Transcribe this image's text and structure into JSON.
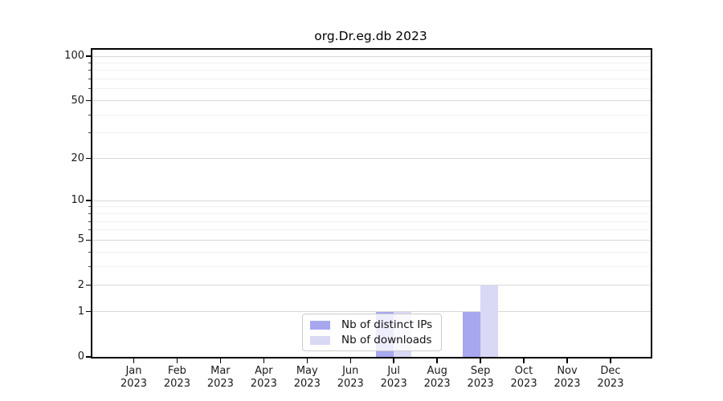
{
  "chart_data": {
    "type": "bar",
    "title": "org.Dr.eg.db 2023",
    "categories": [
      "Jan",
      "Feb",
      "Mar",
      "Apr",
      "May",
      "Jun",
      "Jul",
      "Aug",
      "Sep",
      "Oct",
      "Nov",
      "Dec"
    ],
    "x_tick_second_line": "2023",
    "series": [
      {
        "name": "Nb of distinct IPs",
        "color": "#a7a7f0",
        "values": [
          0,
          0,
          0,
          0,
          0,
          0,
          1,
          0,
          1,
          0,
          0,
          0
        ]
      },
      {
        "name": "Nb of downloads",
        "color": "#d9d9f6",
        "values": [
          0,
          0,
          0,
          0,
          0,
          0,
          1,
          0,
          2,
          0,
          0,
          0
        ]
      }
    ],
    "xlabel": "",
    "ylabel": "",
    "yscale": "log1p",
    "ylim": [
      0,
      113
    ],
    "y_major_ticks": [
      0,
      1,
      2,
      5,
      10,
      20,
      50,
      100
    ],
    "y_minor_ticks": [
      3,
      4,
      6,
      7,
      8,
      9,
      30,
      40,
      60,
      70,
      80,
      90
    ],
    "grid": {
      "enabled": true,
      "major_color": "#d8d8d8",
      "minor_color": "#f0f0f0"
    },
    "legend": {
      "position": "lower center"
    }
  }
}
